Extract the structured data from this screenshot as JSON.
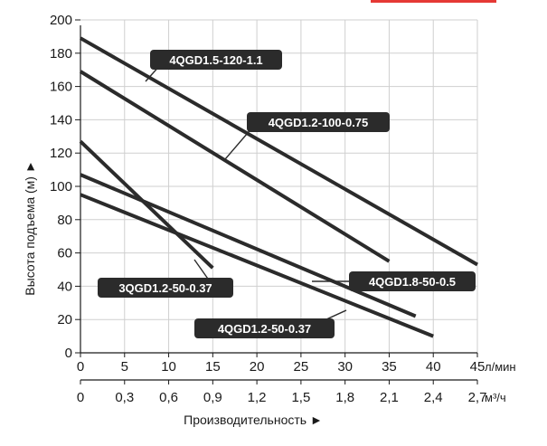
{
  "chart_data": {
    "type": "line",
    "title": "",
    "ylabel": "Высота подъема (м) ►",
    "xlabel": "Производительность ►",
    "x_unit": "л/мин",
    "x2_unit": "м³/ч",
    "ylim": [
      0,
      200
    ],
    "xlim": [
      0,
      45
    ],
    "yticks": [
      "0",
      "20",
      "40",
      "60",
      "80",
      "100",
      "120",
      "140",
      "160",
      "180",
      "200"
    ],
    "xticks": [
      "0",
      "5",
      "10",
      "15",
      "20",
      "25",
      "30",
      "35",
      "40",
      "45"
    ],
    "x2ticks": [
      "0",
      "0,3",
      "0,6",
      "0,9",
      "1,2",
      "1,5",
      "1,8",
      "2,1",
      "2,4",
      "2,7"
    ],
    "grid": true,
    "accent_color": "#e53935",
    "line_color": "#2b2b2b",
    "label_bg_color": "#2b2b2b",
    "series": [
      {
        "name": "4QGD1.5-120-1.1",
        "points": [
          [
            0,
            189
          ],
          [
            45,
            53
          ]
        ]
      },
      {
        "name": "4QGD1.2-100-0.75",
        "points": [
          [
            0,
            169
          ],
          [
            35,
            55
          ]
        ]
      },
      {
        "name": "3QGD1.2-50-0.37",
        "points": [
          [
            0,
            127
          ],
          [
            15,
            51
          ]
        ]
      },
      {
        "name": "4QGD1.8-50-0.5",
        "points": [
          [
            0,
            107
          ],
          [
            38,
            22
          ]
        ]
      },
      {
        "name": "4QGD1.2-50-0.37",
        "points": [
          [
            0,
            95
          ],
          [
            40,
            10
          ]
        ]
      }
    ]
  }
}
